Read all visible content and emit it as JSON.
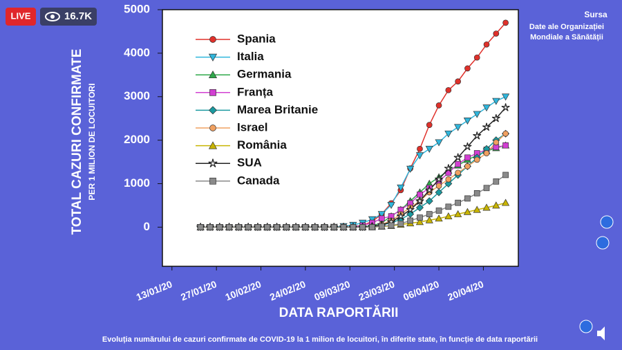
{
  "stream": {
    "live": "LIVE",
    "viewers": "16.7K"
  },
  "source": {
    "title": "Sursa",
    "lines": [
      "Date ale Organizației",
      "Mondiale a Sănătății"
    ]
  },
  "caption": "Evoluția numărului de cazuri confirmate de COVID-19 la 1 milion de locuitori, în diferite state, în funcție de data raportării",
  "chart_data": {
    "type": "line",
    "y_label": "TOTAL CAZURI CONFIRMATE",
    "y_label_sub": "PER 1 MILION DE LOCUITORI",
    "x_label": "DATA RAPORTĂRII",
    "x": [
      "2020-01-22",
      "2020-01-25",
      "2020-01-28",
      "2020-01-31",
      "2020-02-03",
      "2020-02-06",
      "2020-02-09",
      "2020-02-12",
      "2020-02-15",
      "2020-02-18",
      "2020-02-21",
      "2020-02-24",
      "2020-02-27",
      "2020-03-01",
      "2020-03-04",
      "2020-03-07",
      "2020-03-10",
      "2020-03-13",
      "2020-03-16",
      "2020-03-19",
      "2020-03-22",
      "2020-03-25",
      "2020-03-28",
      "2020-03-31",
      "2020-04-03",
      "2020-04-06",
      "2020-04-09",
      "2020-04-12",
      "2020-04-15",
      "2020-04-18",
      "2020-04-21",
      "2020-04-24",
      "2020-04-27"
    ],
    "xlim": [
      "2020-01-10",
      "2020-05-01"
    ],
    "xticks": [
      {
        "value": "2020-01-13",
        "label": "13/01/20"
      },
      {
        "value": "2020-01-27",
        "label": "27/01/20"
      },
      {
        "value": "2020-02-10",
        "label": "10/02/20"
      },
      {
        "value": "2020-02-24",
        "label": "24/02/20"
      },
      {
        "value": "2020-03-09",
        "label": "09/03/20"
      },
      {
        "value": "2020-03-23",
        "label": "23/03/20"
      },
      {
        "value": "2020-04-06",
        "label": "06/04/20"
      },
      {
        "value": "2020-04-20",
        "label": "20/04/20"
      }
    ],
    "ylim": [
      -900,
      5000
    ],
    "yticks": [
      0,
      1000,
      2000,
      3000,
      4000,
      5000
    ],
    "grid": false,
    "series": [
      {
        "name": "Spania",
        "color": "#e0302a",
        "marker": "circle",
        "values": [
          0,
          0,
          0,
          0,
          0,
          0,
          0,
          0,
          0,
          0,
          0,
          0,
          0,
          0,
          0,
          0,
          10,
          40,
          130,
          300,
          550,
          850,
          1350,
          1800,
          2350,
          2800,
          3150,
          3350,
          3650,
          3900,
          4200,
          4450,
          4700
        ]
      },
      {
        "name": "Italia",
        "color": "#2fb6dc",
        "marker": "tri-down",
        "values": [
          0,
          0,
          0,
          0,
          0,
          0,
          0,
          0,
          0,
          0,
          0,
          0,
          0,
          0,
          5,
          20,
          50,
          100,
          180,
          300,
          510,
          910,
          1340,
          1650,
          1800,
          1950,
          2150,
          2300,
          2450,
          2600,
          2750,
          2900,
          3000
        ]
      },
      {
        "name": "Germania",
        "color": "#2ea84a",
        "marker": "tri-up",
        "values": [
          0,
          0,
          0,
          0,
          0,
          0,
          0,
          0,
          0,
          0,
          0,
          0,
          0,
          0,
          0,
          0,
          0,
          10,
          30,
          100,
          250,
          400,
          600,
          800,
          1000,
          1150,
          1300,
          1420,
          1550,
          1650,
          1750,
          1820,
          1880
        ]
      },
      {
        "name": "Franța",
        "color": "#d23fd2",
        "marker": "square",
        "values": [
          0,
          0,
          0,
          0,
          0,
          0,
          0,
          0,
          0,
          0,
          0,
          0,
          0,
          0,
          0,
          0,
          0,
          40,
          100,
          200,
          250,
          400,
          550,
          750,
          900,
          1050,
          1250,
          1450,
          1600,
          1700,
          1780,
          1840,
          1880
        ]
      },
      {
        "name": "Marea Britanie",
        "color": "#1a9aa0",
        "marker": "diamond",
        "values": [
          0,
          0,
          0,
          0,
          0,
          0,
          0,
          0,
          0,
          0,
          0,
          0,
          0,
          0,
          0,
          0,
          0,
          0,
          20,
          50,
          100,
          180,
          300,
          450,
          600,
          800,
          1000,
          1200,
          1400,
          1600,
          1800,
          2000,
          2150
        ]
      },
      {
        "name": "Israel",
        "color": "#f0a060",
        "marker": "circle",
        "values": [
          0,
          0,
          0,
          0,
          0,
          0,
          0,
          0,
          0,
          0,
          0,
          0,
          0,
          0,
          0,
          0,
          0,
          0,
          0,
          60,
          150,
          300,
          450,
          600,
          800,
          950,
          1100,
          1250,
          1400,
          1550,
          1700,
          1950,
          2150
        ]
      },
      {
        "name": "România",
        "color": "#c8b400",
        "marker": "tri-up",
        "values": [
          0,
          0,
          0,
          0,
          0,
          0,
          0,
          0,
          0,
          0,
          0,
          0,
          0,
          0,
          0,
          0,
          0,
          0,
          0,
          15,
          30,
          60,
          90,
          120,
          160,
          200,
          250,
          300,
          350,
          400,
          450,
          500,
          560
        ]
      },
      {
        "name": "SUA",
        "color": "#222222",
        "marker": "star",
        "values": [
          0,
          0,
          0,
          0,
          0,
          0,
          0,
          0,
          0,
          0,
          0,
          0,
          0,
          0,
          0,
          0,
          0,
          0,
          15,
          50,
          120,
          250,
          400,
          600,
          850,
          1100,
          1350,
          1600,
          1850,
          2100,
          2300,
          2500,
          2750
        ]
      },
      {
        "name": "Canada",
        "color": "#8a8a8a",
        "marker": "square",
        "values": [
          0,
          0,
          0,
          0,
          0,
          0,
          0,
          0,
          0,
          0,
          0,
          0,
          0,
          0,
          0,
          0,
          0,
          0,
          0,
          20,
          40,
          80,
          150,
          220,
          300,
          380,
          470,
          560,
          660,
          780,
          900,
          1050,
          1200
        ]
      }
    ]
  }
}
